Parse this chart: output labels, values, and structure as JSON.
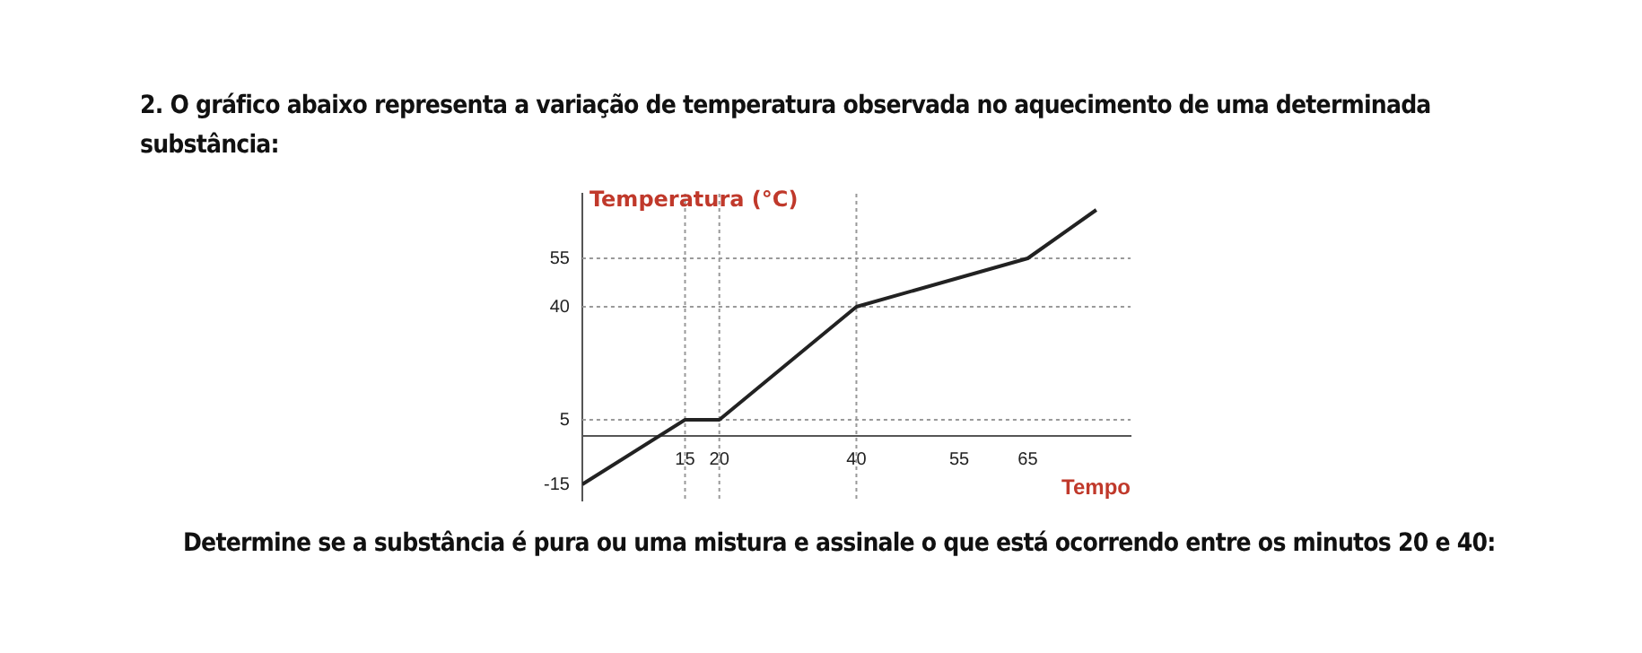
{
  "chart_data": {
    "type": "line",
    "title": "2. O gráfico abaixo representa a variação de temperatura observada no aquecimento de uma determinada substância:",
    "xlabel": "Tempo",
    "ylabel": "Temperatura (°C)",
    "x": [
      0,
      15,
      20,
      40,
      65,
      75
    ],
    "series": [
      {
        "color": "#222222",
        "values": [
          -15,
          5,
          5,
          40,
          55,
          70
        ]
      }
    ],
    "xlim": [
      0,
      80
    ],
    "xticks": [
      15,
      20,
      40,
      55,
      65
    ],
    "ylim": [
      -20,
      75
    ],
    "yticks": [
      -15,
      5,
      40,
      55
    ],
    "ref_lines": [
      {
        "axis": "y",
        "value": 55,
        "color": "#999999",
        "line_style": "dotted"
      },
      {
        "axis": "y",
        "value": 40,
        "color": "#999999",
        "line_style": "dotted"
      },
      {
        "axis": "y",
        "value": 5,
        "color": "#999999",
        "line_style": "dotted"
      },
      {
        "axis": "x",
        "value": 15,
        "color": "#999999",
        "line_style": "dotted"
      },
      {
        "axis": "x",
        "value": 20,
        "color": "#999999",
        "line_style": "dotted"
      },
      {
        "axis": "x",
        "value": 40,
        "color": "#999999",
        "line_style": "dotted"
      }
    ],
    "annotations": [
      "Determine se a substância é pura ou uma mistura e assinale o que está ocorrendo entre os minutos 20 e 40:"
    ],
    "grid": false,
    "legend": false,
    "marker": "none",
    "line_style": "solid"
  }
}
